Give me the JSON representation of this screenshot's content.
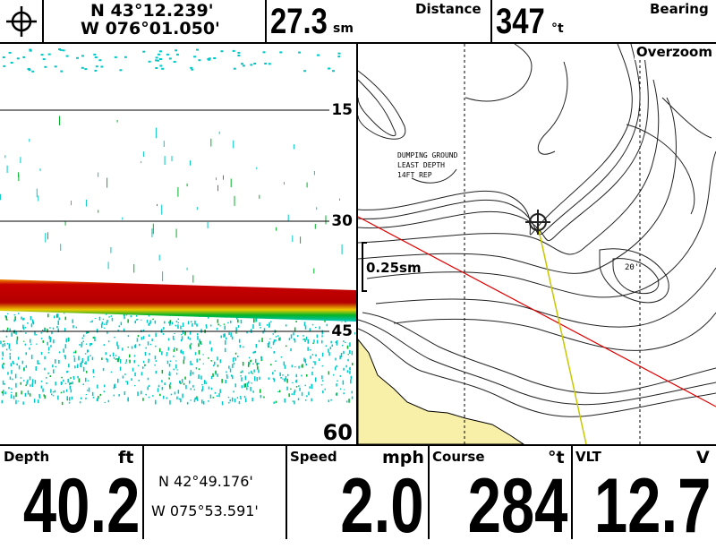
{
  "top_bar": {
    "position": {
      "lat": "N 43°12.239'",
      "lon": "W 076°01.050'"
    },
    "distance": {
      "value": "27.3",
      "unit": "sm",
      "label": "Distance"
    },
    "bearing": {
      "value": "347",
      "unit": "°t",
      "label": "Bearing"
    }
  },
  "sonar": {
    "depth_marks": [
      "15",
      "30",
      "45",
      "60"
    ],
    "colors": {
      "bottom_red": "#c80000",
      "bottom_orange": "#f08c00",
      "bottom_yellow": "#f0e600",
      "green": "#00b428",
      "cyan": "#00c8c8"
    }
  },
  "map": {
    "overzoom_label": "Overzoom",
    "scale_label": "0.25sm",
    "annotation": {
      "line1": "DUMPING GROUND",
      "line2": "LEAST DEPTH",
      "line3": "14FT REP"
    },
    "spot_depth": "20'",
    "colors": {
      "route": "#e00000",
      "heading": "#c8c800",
      "land": "#f8f0a8"
    }
  },
  "bottom_bar": {
    "depth": {
      "label": "Depth",
      "unit": "ft",
      "value": "40.2"
    },
    "position": {
      "lat": "N 42°49.176'",
      "lon": "W 075°53.591'"
    },
    "speed": {
      "label": "Speed",
      "unit": "mph",
      "value": "2.0"
    },
    "course": {
      "label": "Course",
      "unit": "°t",
      "value": "284"
    },
    "vlt": {
      "label": "VLT",
      "unit": "V",
      "value": "12.7"
    }
  }
}
